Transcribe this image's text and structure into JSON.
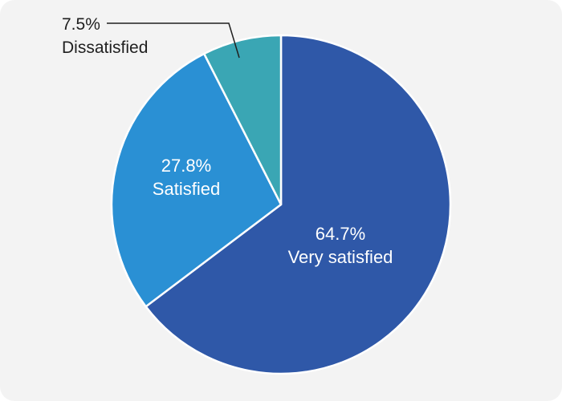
{
  "chart_data": {
    "type": "pie",
    "title": "",
    "slices": [
      {
        "label": "Very satisfied",
        "value": 64.7,
        "value_label": "64.7%",
        "color": "#2f58a8"
      },
      {
        "label": "Satisfied",
        "value": 27.8,
        "value_label": "27.8%",
        "color": "#2a90d4"
      },
      {
        "label": "Dissatisfied",
        "value": 7.5,
        "value_label": "7.5%",
        "color": "#3aa6b4"
      }
    ],
    "start_angle": "12 o'clock",
    "direction": "clockwise",
    "legend": "none",
    "slice_border_color": "#ffffff"
  }
}
